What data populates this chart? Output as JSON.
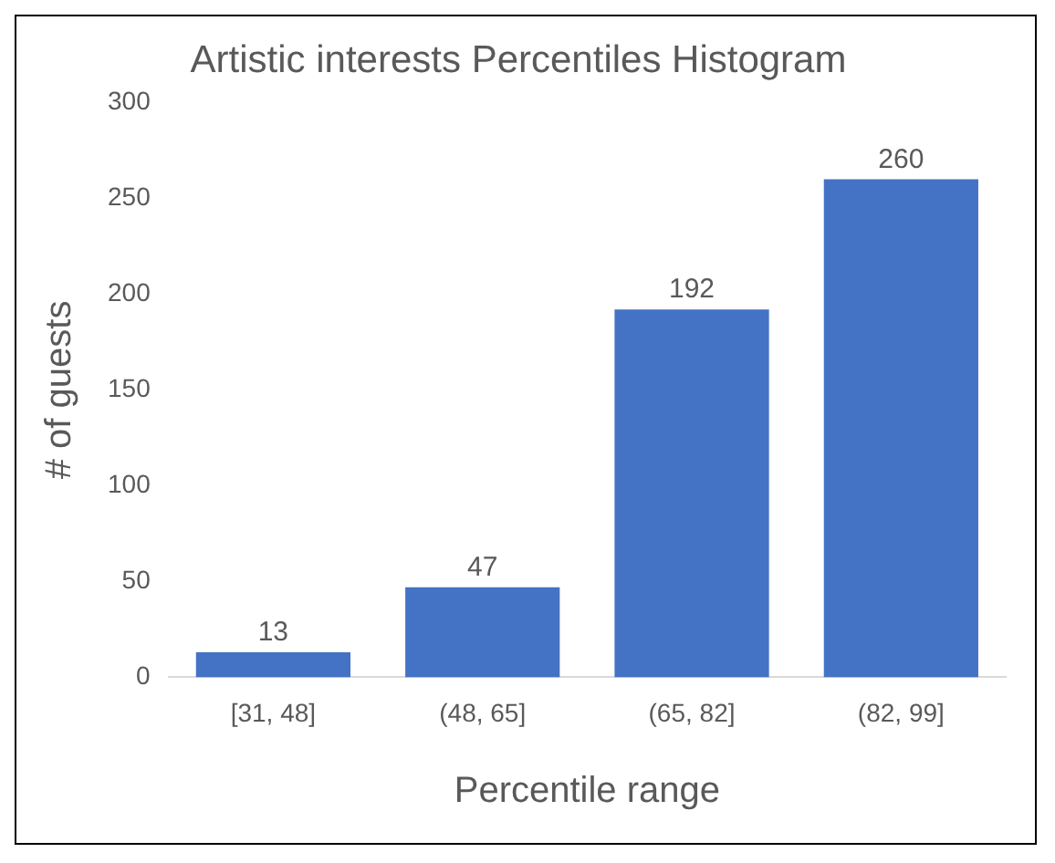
{
  "chart_data": {
    "type": "bar",
    "title": "Artistic interests Percentiles Histogram",
    "xlabel": "Percentile range",
    "ylabel": "# of guests",
    "categories": [
      "[31, 48]",
      "(48, 65]",
      "(65, 82]",
      "(82, 99]"
    ],
    "values": [
      13,
      47,
      192,
      260
    ],
    "color": "#4472c4",
    "ylim": [
      0,
      300
    ],
    "yticks": [
      0,
      50,
      100,
      150,
      200,
      250,
      300
    ],
    "grid": false,
    "data_labels": true
  }
}
